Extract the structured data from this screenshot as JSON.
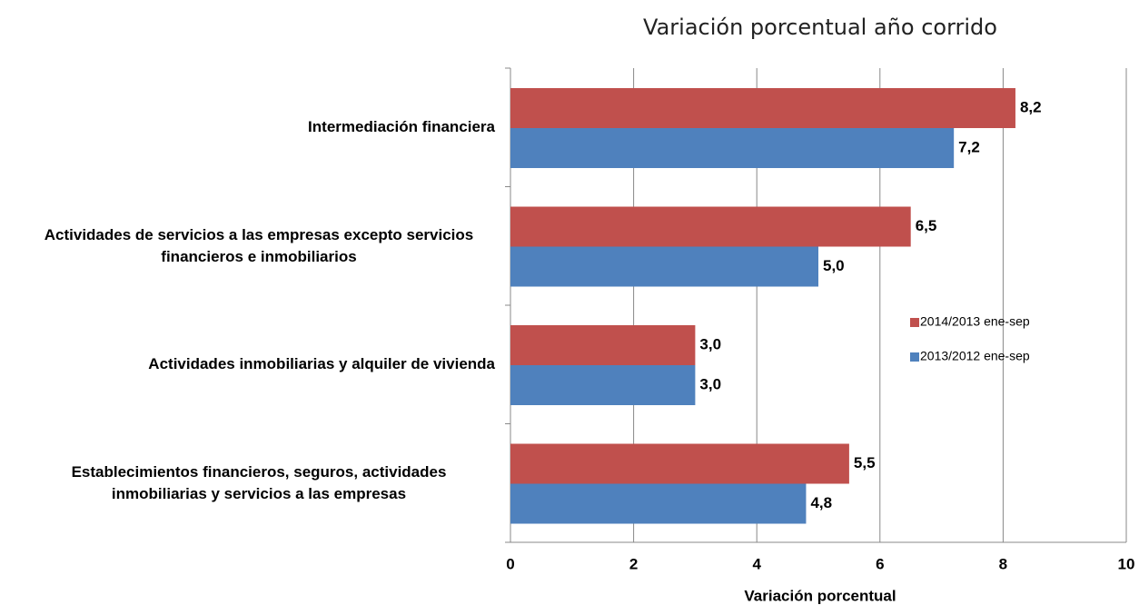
{
  "chart_data": {
    "type": "bar",
    "orientation": "horizontal",
    "title": "Variación porcentual año corrido",
    "xlabel": "Variación porcentual",
    "categories": [
      "Intermediación financiera",
      "Actividades de servicios a las empresas excepto servicios financieros e inmobiliarios",
      "Actividades inmobiliarias y alquiler de vivienda",
      "Establecimientos financieros, seguros, actividades inmobiliarias y servicios a las empresas"
    ],
    "series": [
      {
        "name": "2014/2013 ene-sep",
        "color": "#c0504d",
        "values": [
          8.2,
          6.5,
          3.0,
          5.5
        ],
        "value_labels": [
          "8,2",
          "6,5",
          "3,0",
          "5,5"
        ]
      },
      {
        "name": "2013/2012 ene-sep",
        "color": "#4f81bd",
        "values": [
          7.2,
          5.0,
          3.0,
          4.8
        ],
        "value_labels": [
          "7,2",
          "5,0",
          "3,0",
          "4,8"
        ]
      }
    ],
    "xlim": [
      0,
      10
    ],
    "xticks": [
      0,
      2,
      4,
      6,
      8,
      10
    ],
    "grid": true,
    "legend": "right"
  }
}
